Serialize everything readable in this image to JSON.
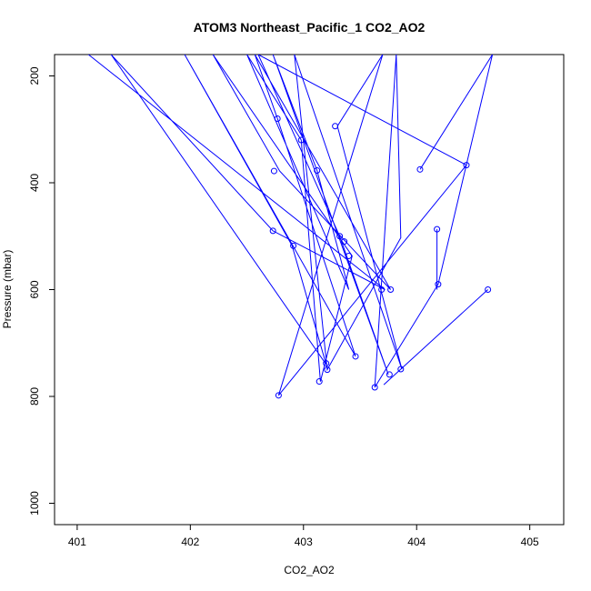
{
  "chart_data": {
    "type": "line",
    "title": "ATOM3 Northeast_Pacific_1 CO2_AO2",
    "xlabel": "CO2_AO2",
    "ylabel": "Pressure (mbar)",
    "xlim": [
      400.8,
      405.3
    ],
    "ylim": [
      1040,
      160
    ],
    "y_reversed": true,
    "x_ticks": [
      401,
      402,
      403,
      404,
      405
    ],
    "y_ticks": [
      200,
      400,
      600,
      800,
      1000
    ],
    "grid": false,
    "legend": "none",
    "series_color": "#0000ff",
    "series": [
      {
        "x": [
          401.1,
          403.72,
          402.73,
          401.3,
          403.2,
          402.9,
          401.95,
          403.46,
          402.77,
          402.57,
          403.77,
          402.79,
          402.2,
          403.43,
          403.15,
          402.98,
          402.5,
          403.4,
          403.12,
          402.73,
          403.75,
          403.32,
          402.6,
          404.44,
          402.78,
          403.7,
          403.3,
          403.87,
          402.92,
          403.21,
          403.86,
          403.82,
          403.63,
          404.19,
          404.67,
          404.03
        ],
        "y": [
          160,
          600,
          490,
          160,
          740,
          518,
          160,
          725,
          280,
          160,
          600,
          378,
          160,
          537,
          772,
          320,
          160,
          600,
          377,
          160,
          759,
          500,
          160,
          367,
          798,
          160,
          294,
          749,
          160,
          750,
          503,
          160,
          783,
          590,
          160,
          375
        ]
      },
      {
        "x": [
          404.63,
          403.71
        ],
        "y": [
          600,
          778
        ]
      },
      {
        "x": [
          404.18,
          404.18
        ],
        "y": [
          487,
          600
        ]
      }
    ],
    "points": [
      {
        "x": 402.77,
        "y": 280
      },
      {
        "x": 403.28,
        "y": 294
      },
      {
        "x": 402.98,
        "y": 320
      },
      {
        "x": 404.44,
        "y": 367
      },
      {
        "x": 404.03,
        "y": 375
      },
      {
        "x": 403.12,
        "y": 377
      },
      {
        "x": 402.74,
        "y": 378
      },
      {
        "x": 404.18,
        "y": 487
      },
      {
        "x": 402.73,
        "y": 490
      },
      {
        "x": 403.32,
        "y": 500
      },
      {
        "x": 403.36,
        "y": 510
      },
      {
        "x": 402.91,
        "y": 518
      },
      {
        "x": 403.4,
        "y": 537
      },
      {
        "x": 404.19,
        "y": 590
      },
      {
        "x": 403.69,
        "y": 600
      },
      {
        "x": 403.77,
        "y": 600
      },
      {
        "x": 404.63,
        "y": 600
      },
      {
        "x": 403.46,
        "y": 725
      },
      {
        "x": 403.2,
        "y": 738
      },
      {
        "x": 403.21,
        "y": 750
      },
      {
        "x": 403.86,
        "y": 749
      },
      {
        "x": 403.76,
        "y": 759
      },
      {
        "x": 403.14,
        "y": 772
      },
      {
        "x": 403.63,
        "y": 783
      },
      {
        "x": 402.78,
        "y": 798
      }
    ]
  }
}
